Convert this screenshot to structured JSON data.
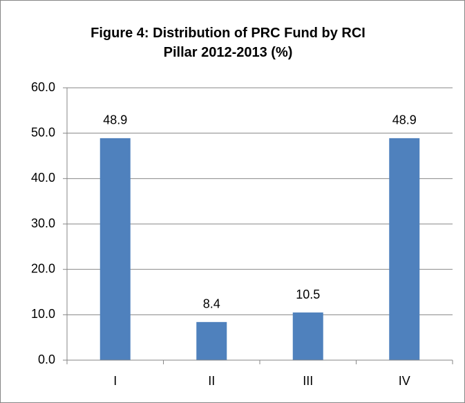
{
  "chart_data": {
    "type": "bar",
    "title": "Figure 4: Distribution of PRC Fund by RCI Pillar 2012-2013 (%)",
    "categories": [
      "I",
      "II",
      "III",
      "IV"
    ],
    "values": [
      48.9,
      8.4,
      10.5,
      48.9
    ],
    "color": "#4f81bd",
    "ylim": [
      0,
      60
    ],
    "yticks": [
      {
        "value": 0,
        "label": "0.0"
      },
      {
        "value": 10,
        "label": "10.0"
      },
      {
        "value": 20,
        "label": "20.0"
      },
      {
        "value": 30,
        "label": "30.0"
      },
      {
        "value": 40,
        "label": "40.0"
      },
      {
        "value": 50,
        "label": "50.0"
      },
      {
        "value": 60,
        "label": "60.0"
      }
    ],
    "grid": true
  }
}
